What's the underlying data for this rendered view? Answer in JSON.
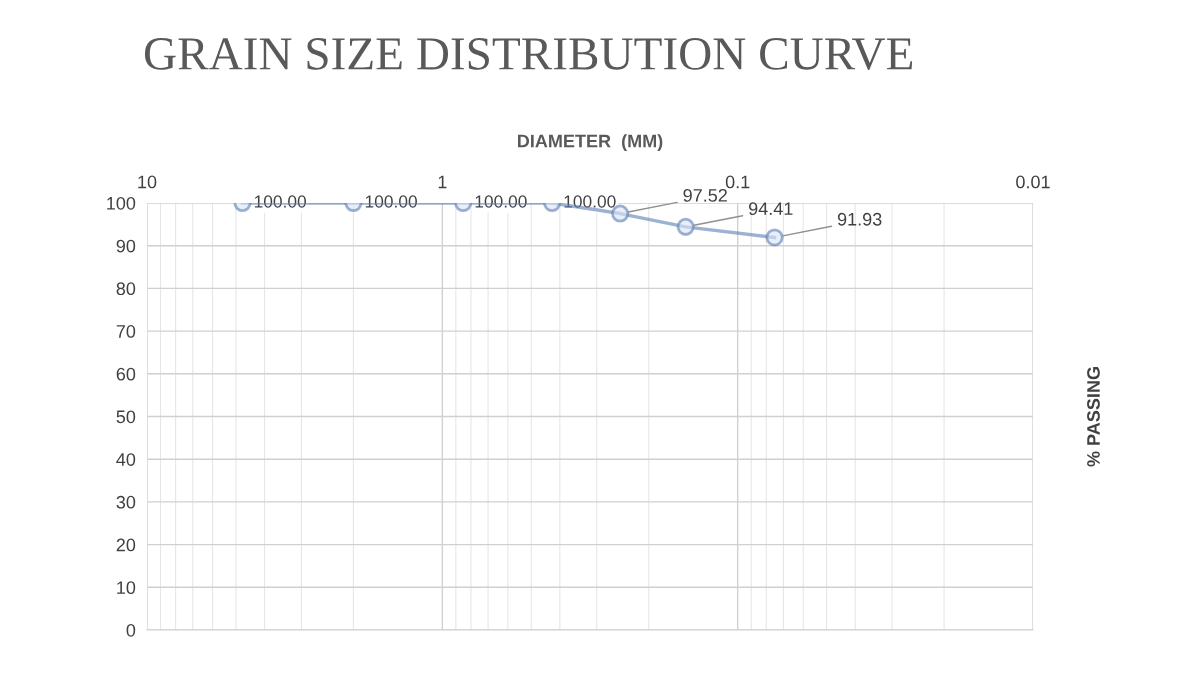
{
  "chart_data": {
    "type": "line",
    "title": "GRAIN SIZE DISTRIBUTION CURVE",
    "xlabel": "DIAMETER  (MM)",
    "y2label": "% PASSING",
    "x": [
      4.75,
      2.0,
      0.85,
      0.425,
      0.25,
      0.15,
      0.075
    ],
    "series": [
      {
        "color": "#5b7fb5",
        "values": [
          100.0,
          100.0,
          100.0,
          100.0,
          97.52,
          94.41,
          91.93
        ],
        "value_labels": [
          "100.00",
          "100.00",
          "100.00",
          "100.00",
          "97.52",
          "94.41",
          "91.93"
        ]
      }
    ],
    "log": "x",
    "xlim": [
      10,
      0.01
    ],
    "xticks": [
      10,
      1,
      0.1,
      0.01
    ],
    "ylim": [
      0,
      100
    ],
    "yticks": [
      0,
      10,
      20,
      30,
      40,
      50,
      60,
      70,
      80,
      90,
      100
    ],
    "grid": true,
    "marker": "circle",
    "line_style": "solid"
  }
}
